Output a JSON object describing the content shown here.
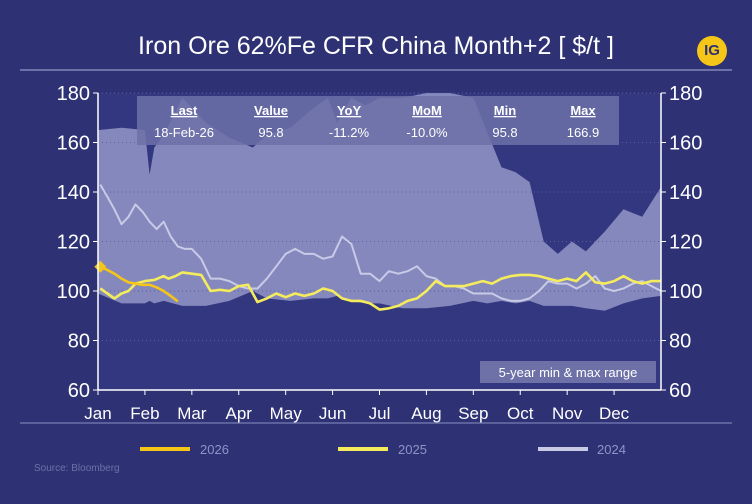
{
  "brand": {
    "logo_text": "IG"
  },
  "source": "Source: Bloomberg",
  "range_label": "5-year min & max range",
  "stats": {
    "headers": [
      "Last",
      "Value",
      "YoY",
      "MoM",
      "Min",
      "Max"
    ],
    "values": [
      "18-Feb-26",
      "95.8",
      "-11.2%",
      "-10.0%",
      "95.8",
      "166.9"
    ]
  },
  "chart_data": {
    "type": "line",
    "title": "Iron Ore 62%Fe CFR China Month+2 [ $/t ]",
    "ylim": [
      60,
      180
    ],
    "y_ticks": [
      "60",
      "80",
      "100",
      "120",
      "140",
      "160",
      "180"
    ],
    "x_tick_labels": [
      "Jan",
      "Feb",
      "Mar",
      "Apr",
      "May",
      "Jun",
      "Jul",
      "Aug",
      "Sep",
      "Oct",
      "Nov",
      "Dec"
    ],
    "xlim": [
      0,
      12
    ],
    "colors": {
      "background": "#2e3274",
      "plot": "#33377f",
      "band": "#9497c8",
      "s2026": "#f5c518",
      "s2025": "#f4ec5c",
      "s2024": "#c8cae6",
      "axis": "#ffffff",
      "stats_box": "#6d71a8"
    },
    "band": {
      "name": "5-year min & max range",
      "x": [
        0.0,
        0.5,
        1.0,
        1.1,
        1.2,
        1.4,
        1.8,
        2.3,
        2.8,
        3.3,
        3.6,
        4.1,
        4.6,
        4.9,
        5.1,
        5.4,
        5.7,
        6.0,
        6.5,
        7.0,
        7.5,
        8.0,
        8.3,
        8.6,
        8.9,
        9.2,
        9.5,
        9.8,
        10.1,
        10.4,
        10.8,
        11.2,
        11.6,
        12.0
      ],
      "min": [
        99,
        95,
        95,
        96,
        95,
        96,
        94,
        94,
        96,
        100,
        97,
        96,
        97,
        97,
        98,
        96,
        95,
        95,
        93,
        93,
        94,
        96,
        95,
        96,
        95,
        96,
        94,
        94,
        94,
        93,
        92,
        95,
        97,
        98
      ],
      "max": [
        165,
        166,
        165,
        147,
        158,
        163,
        178,
        168,
        162,
        158,
        163,
        166,
        174,
        178,
        168,
        178,
        175,
        178,
        178,
        180,
        180,
        178,
        164,
        150,
        148,
        144,
        120,
        115,
        120,
        116,
        124,
        133,
        130,
        142
      ]
    },
    "series": [
      {
        "name": "2026",
        "color": "#f5c518",
        "x": [
          0.05,
          0.2,
          0.35,
          0.5,
          0.65,
          0.8,
          0.95,
          1.1,
          1.25,
          1.4,
          1.55,
          1.7
        ],
        "y": [
          109.8,
          108.5,
          107.0,
          105.0,
          103.5,
          103.0,
          102.5,
          102.5,
          101.5,
          100.0,
          98.0,
          95.8
        ]
      },
      {
        "name": "2025",
        "color": "#f4ec5c",
        "x": [
          0.05,
          0.2,
          0.35,
          0.5,
          0.65,
          0.8,
          1.0,
          1.2,
          1.4,
          1.5,
          1.65,
          1.8,
          2.0,
          2.2,
          2.4,
          2.6,
          2.8,
          3.0,
          3.2,
          3.4,
          3.6,
          3.8,
          4.0,
          4.2,
          4.4,
          4.6,
          4.8,
          5.0,
          5.2,
          5.4,
          5.6,
          5.8,
          6.0,
          6.2,
          6.4,
          6.6,
          6.8,
          7.0,
          7.2,
          7.4,
          7.6,
          7.8,
          8.0,
          8.2,
          8.4,
          8.6,
          8.8,
          9.0,
          9.2,
          9.4,
          9.6,
          9.8,
          10.0,
          10.2,
          10.4,
          10.6,
          10.8,
          11.0,
          11.2,
          11.4,
          11.6,
          11.8,
          12.0
        ],
        "y": [
          101,
          99,
          97,
          99,
          100,
          103,
          104,
          104.5,
          106,
          105,
          106,
          107.5,
          107,
          106.5,
          100,
          100.5,
          100,
          102,
          102.5,
          95.5,
          97,
          99,
          97.5,
          99,
          98,
          99,
          101,
          100,
          97,
          96,
          96,
          95,
          92.5,
          93,
          94,
          96,
          97,
          100,
          104,
          102,
          102,
          102,
          103,
          104,
          103,
          105,
          106,
          106.5,
          106.5,
          106,
          105,
          104,
          105,
          104,
          107.5,
          103.5,
          103,
          104,
          106,
          104,
          103,
          104,
          104
        ]
      },
      {
        "name": "2024",
        "color": "#c8cae6",
        "x": [
          0.05,
          0.2,
          0.35,
          0.5,
          0.65,
          0.8,
          0.95,
          1.1,
          1.25,
          1.4,
          1.55,
          1.7,
          1.85,
          2.0,
          2.2,
          2.4,
          2.6,
          2.8,
          3.0,
          3.2,
          3.4,
          3.6,
          3.8,
          4.0,
          4.2,
          4.4,
          4.6,
          4.8,
          5.0,
          5.2,
          5.4,
          5.6,
          5.8,
          6.0,
          6.2,
          6.4,
          6.6,
          6.8,
          7.0,
          7.2,
          7.4,
          7.6,
          7.8,
          8.0,
          8.2,
          8.4,
          8.6,
          8.8,
          9.0,
          9.2,
          9.4,
          9.6,
          9.8,
          10.0,
          10.2,
          10.4,
          10.6,
          10.8,
          11.0,
          11.2,
          11.4,
          11.6,
          11.8,
          12.0
        ],
        "y": [
          143,
          138,
          133,
          127,
          130,
          135,
          132,
          128,
          125,
          128,
          122,
          118,
          117,
          117,
          113,
          105,
          105,
          104,
          102,
          101,
          101,
          105,
          110,
          115,
          117,
          115,
          115,
          113,
          114,
          122,
          119,
          107,
          107,
          104,
          108,
          107,
          108,
          110,
          106,
          105,
          102,
          102,
          101,
          99,
          99,
          99,
          97,
          96,
          96,
          97,
          100,
          104,
          103,
          103,
          101,
          103,
          106,
          101,
          100,
          101,
          103,
          104,
          102,
          100
        ]
      }
    ]
  },
  "legend": {
    "labels": [
      "2026",
      "2025",
      "2024"
    ]
  }
}
